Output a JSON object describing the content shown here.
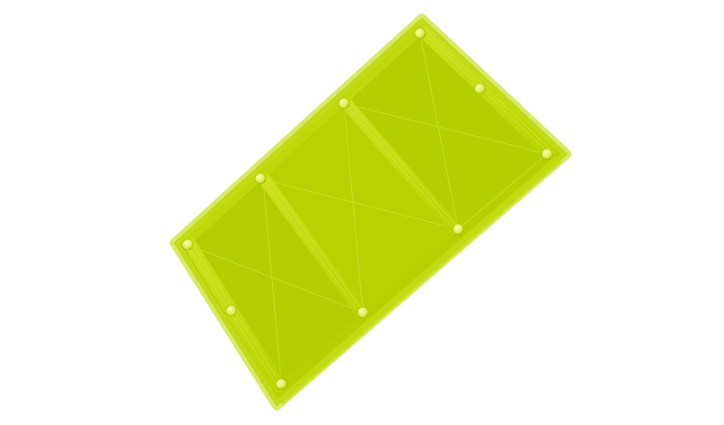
{
  "scene": {
    "background_color": "#ffffff",
    "model": {
      "kind": "rectangular-plate-with-ribs",
      "base_color": "#b5d000",
      "highlight_color": "#d7ea3c",
      "edge_color": "#9fbd00",
      "screw_hole_color": "#e8f26a",
      "panel_count": 3,
      "screw_hole_count": 10
    }
  }
}
